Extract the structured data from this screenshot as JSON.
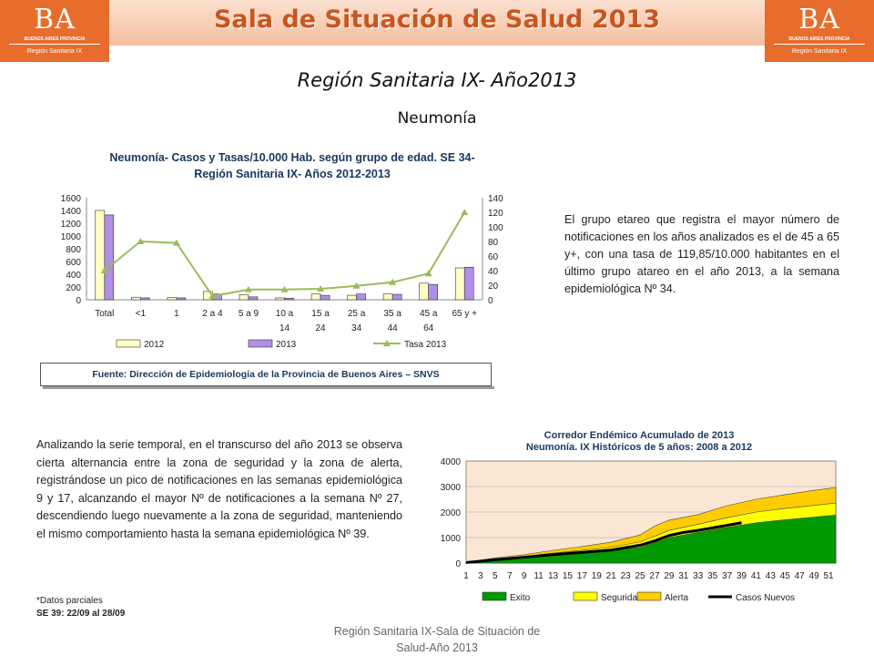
{
  "header": {
    "title": "Sala de Situación de Salud 2013",
    "logo_left": {
      "mark": "BA",
      "province": "BUENOS AIRES PROVINCIA",
      "region": "Región Sanitaria IX"
    },
    "logo_right": {
      "mark": "BA",
      "province": "BUENOS AIRES PROVINCIA",
      "region": "Región Sanitaria IX"
    },
    "accent_color": "#e86c2c"
  },
  "region_title": "Región Sanitaria IX- Año2013",
  "topic": "Neumonía",
  "chart1": {
    "title_line1": "Neumonía- Casos y Tasas/10.000 Hab. según grupo de edad. SE 34-",
    "title_line2": "Región Sanitaria IX- Años 2012-2013",
    "source": "Fuente: Dirección de Epidemiología de la Provincia de Buenos Aires – SNVS"
  },
  "paragraph_right": "El grupo etareo que registra el mayor número de notificaciones en los años analizados es el de 45 a 65 y+, con una tasa de 119,85/10.000 habitantes en el último grupo atareo en el año 2013, a la semana epidemiológica Nº 34.",
  "paragraph_left": "Analizando la serie temporal, en el transcurso del año 2013 se observa cierta alternancia entre la zona de seguridad y la zona de alerta, registrándose un pico de notificaciones en las semanas epidemiológica 9 y 17, alcanzando el mayor Nº de notificaciones a la semana Nº 27, descendiendo luego nuevamente a la zona de seguridad, manteniendo el mismo comportamiento hasta la semana epidemiológica Nº 39.",
  "chart2": {
    "title_line1": "Corredor Endémico Acumulado de 2013",
    "title_line2": "Neumonía.  IX Históricos de 5 años: 2008 a 2012"
  },
  "notes": {
    "partial": "*Datos parciales",
    "week": "SE  39:  22/09 al  28/09"
  },
  "footer": {
    "line1": "Región Sanitaria IX-Sala de Situación de",
    "line2": "Salud-Año 2013"
  },
  "chart_data": [
    {
      "type": "bar",
      "title": "Neumonía- Casos y Tasas/10.000 Hab. según grupo de edad. SE 34- Región Sanitaria IX- Años 2012-2013",
      "categories": [
        [
          "Total"
        ],
        [
          "<1"
        ],
        [
          "1"
        ],
        [
          "2 a 4"
        ],
        [
          "5 a 9"
        ],
        [
          "10 a",
          "14"
        ],
        [
          "15 a",
          "24"
        ],
        [
          "25 a",
          "34"
        ],
        [
          "35 a",
          "44"
        ],
        [
          "45 a",
          "64"
        ],
        [
          "65 y +"
        ]
      ],
      "series": [
        {
          "name": "2012",
          "type": "bar",
          "axis": "left",
          "color": "#ffffc8",
          "values": [
            1400,
            40,
            35,
            130,
            80,
            30,
            90,
            70,
            90,
            260,
            500
          ]
        },
        {
          "name": "2013",
          "type": "bar",
          "axis": "left",
          "color": "#b18ee8",
          "values": [
            1330,
            30,
            30,
            90,
            45,
            25,
            70,
            90,
            85,
            240,
            510
          ]
        },
        {
          "name": "Tasa 2013",
          "type": "line",
          "axis": "right",
          "color": "#9bbb59",
          "values": [
            40,
            80,
            78,
            5,
            14,
            14,
            15,
            19,
            24,
            36,
            119.85
          ]
        }
      ],
      "left_axis": {
        "min": 0,
        "max": 1600,
        "ticks": [
          0,
          200,
          400,
          600,
          800,
          1000,
          1200,
          1400,
          1600
        ]
      },
      "right_axis": {
        "min": 0,
        "max": 140,
        "ticks": [
          0,
          20,
          40,
          60,
          80,
          100,
          120,
          140
        ]
      },
      "legend": "bottom",
      "grid": false
    },
    {
      "type": "area",
      "title": "Corredor Endémico Acumulado de 2013 Neumonía.  IX Históricos de 5 años: 2008 a 2012",
      "x": {
        "min": 1,
        "max": 52,
        "tick_labels": [
          "1",
          "3",
          "5",
          "7",
          "9",
          "11",
          "13",
          "15",
          "17",
          "19",
          "21",
          "23",
          "25",
          "27",
          "29",
          "31",
          "33",
          "35",
          "37",
          "39",
          "41",
          "43",
          "45",
          "47",
          "49",
          "51"
        ]
      },
      "y": {
        "min": 0,
        "max": 4000,
        "ticks": [
          0,
          1000,
          2000,
          3000,
          4000
        ]
      },
      "background": "#fbe6d4",
      "weeks": [
        1,
        5,
        9,
        13,
        17,
        21,
        25,
        27,
        29,
        33,
        37,
        41,
        45,
        49,
        52
      ],
      "series": [
        {
          "name": "Exito",
          "color": "#009900",
          "values": [
            20,
            120,
            200,
            300,
            380,
            470,
            620,
            800,
            1000,
            1200,
            1400,
            1580,
            1700,
            1800,
            1880
          ]
        },
        {
          "name": "Seguridad",
          "color": "#ffff00",
          "values": [
            30,
            160,
            260,
            390,
            500,
            620,
            830,
            1050,
            1280,
            1520,
            1780,
            2000,
            2140,
            2260,
            2350
          ]
        },
        {
          "name": "Alerta",
          "color": "#ffcc00",
          "values": [
            40,
            200,
            330,
            500,
            650,
            820,
            1100,
            1450,
            1680,
            1900,
            2250,
            2500,
            2680,
            2850,
            2960
          ]
        },
        {
          "name": "Casos Nuevos",
          "color": "#000000",
          "type": "line",
          "weeks": [
            1,
            5,
            9,
            13,
            17,
            21,
            25,
            27,
            29,
            31,
            33,
            35,
            37,
            39
          ],
          "values": [
            20,
            130,
            230,
            330,
            420,
            510,
            700,
            870,
            1080,
            1200,
            1280,
            1380,
            1480,
            1580
          ]
        }
      ],
      "legend": "bottom"
    }
  ]
}
